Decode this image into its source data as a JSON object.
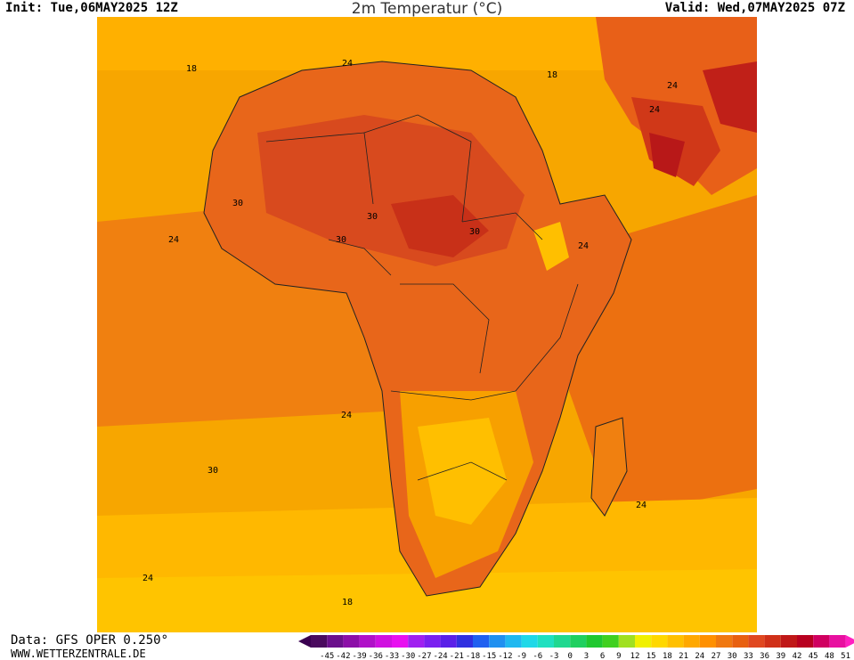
{
  "header": {
    "init": "Init: Tue,06MAY2025 12Z",
    "title": "2m Temperatur (°C)",
    "valid": "Valid: Wed,07MAY2025 07Z"
  },
  "footer": {
    "data": "Data: GFS OPER 0.250°",
    "site": "WWW.WETTERZENTRALE.DE"
  },
  "map": {
    "region": "Africa",
    "field": "2m temperature",
    "contour_labels": [
      "18",
      "24",
      "18",
      "24",
      "24",
      "30",
      "30",
      "30",
      "30",
      "24",
      "24",
      "24",
      "30",
      "24",
      "24",
      "18",
      "18"
    ]
  },
  "legend": {
    "ticks": [
      "-45",
      "-42",
      "-39",
      "-36",
      "-33",
      "-30",
      "-27",
      "-24",
      "-21",
      "-18",
      "-15",
      "-12",
      "-9",
      "-6",
      "-3",
      "0",
      "3",
      "6",
      "9",
      "12",
      "15",
      "18",
      "21",
      "24",
      "27",
      "30",
      "33",
      "36",
      "39",
      "42",
      "45",
      "48",
      "51"
    ],
    "colors": [
      "#4a0a5e",
      "#6b0f8c",
      "#8c0fa8",
      "#b010c8",
      "#d010e0",
      "#e810f0",
      "#a020f0",
      "#7a20f0",
      "#5a20e8",
      "#3030e0",
      "#2060f0",
      "#2090f0",
      "#20b8f0",
      "#20d8e8",
      "#20e0c0",
      "#20d890",
      "#20d060",
      "#20c830",
      "#40d020",
      "#a0e020",
      "#f0f000",
      "#ffd800",
      "#ffc000",
      "#ffa800",
      "#ff9000",
      "#f07810",
      "#e86010",
      "#e04820",
      "#d03018",
      "#c01818",
      "#b80020",
      "#d00060",
      "#e810a0"
    ],
    "end_colors": {
      "low": "#3a0050",
      "high": "#ff20c0"
    }
  }
}
